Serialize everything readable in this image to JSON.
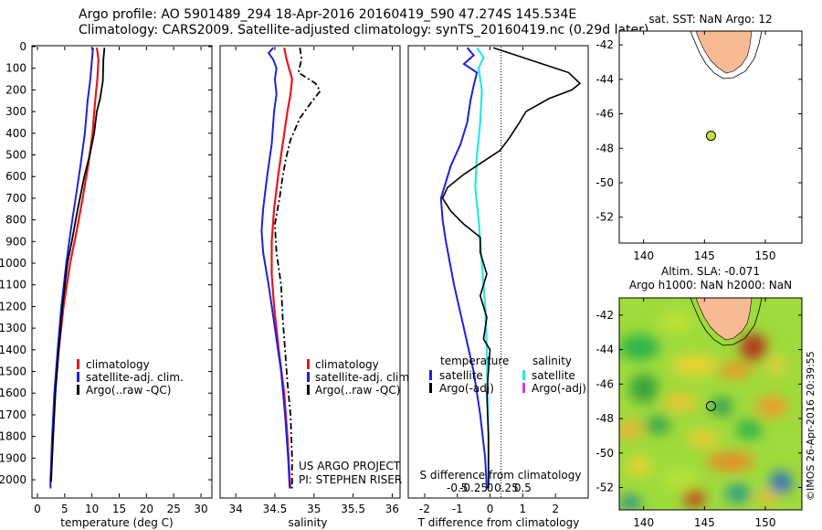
{
  "header": {
    "line1": "Argo profile: AO 5901489_294 18-Apr-2016 20160419_590 47.274S 145.534E",
    "line2": "Climatology: CARS2009. Satellite-adjusted climatology: synTS_20160419.nc (0.29d later)"
  },
  "colors": {
    "climatology": "#e8161c",
    "satellite": "#1c22d8",
    "argo": "#000000",
    "sal_satellite": "#29e6ea",
    "sal_argo": "#d63ad6",
    "land": "#f8ba93"
  },
  "chart_data": [
    {
      "type": "line",
      "id": "temperature_profile",
      "xlabel": "temperature (deg C)",
      "ylabel": "",
      "xlim": [
        -1,
        32
      ],
      "ylim": [
        2080,
        0
      ],
      "xticks": [
        "0",
        "5",
        "10",
        "15",
        "20",
        "25",
        "30"
      ],
      "yticks": [
        "0",
        "100",
        "200",
        "300",
        "400",
        "500",
        "600",
        "700",
        "800",
        "900",
        "1000",
        "1100",
        "1200",
        "1300",
        "1400",
        "1500",
        "1600",
        "1700",
        "1800",
        "1900",
        "2000"
      ],
      "legend": [
        "climatology",
        "satellite-adj. clim.",
        "Argo(..raw -QC)"
      ],
      "series": [
        {
          "name": "climatology",
          "points": [
            [
              10.9,
              5
            ],
            [
              11.2,
              60
            ],
            [
              11.0,
              150
            ],
            [
              10.6,
              250
            ],
            [
              10.1,
              400
            ],
            [
              9.3,
              550
            ],
            [
              8.3,
              700
            ],
            [
              7.2,
              850
            ],
            [
              6.0,
              1000
            ],
            [
              4.8,
              1200
            ],
            [
              3.9,
              1400
            ],
            [
              3.2,
              1600
            ],
            [
              2.8,
              1800
            ],
            [
              2.5,
              2000
            ]
          ]
        },
        {
          "name": "satellite-adj. clim.",
          "points": [
            [
              10.2,
              5
            ],
            [
              10.0,
              60
            ],
            [
              9.7,
              150
            ],
            [
              9.2,
              250
            ],
            [
              8.7,
              400
            ],
            [
              7.9,
              550
            ],
            [
              7.0,
              700
            ],
            [
              6.1,
              850
            ],
            [
              5.3,
              1000
            ],
            [
              4.4,
              1200
            ],
            [
              3.7,
              1400
            ],
            [
              3.1,
              1600
            ],
            [
              2.7,
              1800
            ],
            [
              2.4,
              2000
            ],
            [
              2.4,
              2040
            ]
          ]
        },
        {
          "name": "Argo(..raw -QC)",
          "points": [
            [
              12.3,
              5
            ],
            [
              12.1,
              60
            ],
            [
              12.0,
              160
            ],
            [
              11.5,
              240
            ],
            [
              10.9,
              300
            ],
            [
              10.4,
              400
            ],
            [
              9.6,
              500
            ],
            [
              8.6,
              600
            ],
            [
              7.4,
              750
            ],
            [
              6.3,
              900
            ],
            [
              5.5,
              1000
            ],
            [
              4.6,
              1200
            ],
            [
              3.9,
              1400
            ],
            [
              3.3,
              1600
            ],
            [
              2.9,
              1800
            ],
            [
              2.6,
              1950
            ],
            [
              2.5,
              2010
            ]
          ]
        }
      ]
    },
    {
      "type": "line",
      "id": "salinity_profile",
      "xlabel": "salinity",
      "xlim": [
        33.8,
        36.1
      ],
      "ylim": [
        2080,
        0
      ],
      "xticks": [
        "34",
        "34.5",
        "35",
        "35.5",
        "36"
      ],
      "legend": [
        "climatology",
        "satellite-adj. clim.",
        "Argo(..raw -QC)"
      ],
      "annotation": [
        "US ARGO PROJECT",
        "PI: STEPHEN RISER"
      ],
      "series": [
        {
          "name": "climatology",
          "points": [
            [
              34.62,
              5
            ],
            [
              34.65,
              60
            ],
            [
              34.72,
              150
            ],
            [
              34.7,
              220
            ],
            [
              34.66,
              300
            ],
            [
              34.6,
              450
            ],
            [
              34.54,
              600
            ],
            [
              34.49,
              750
            ],
            [
              34.46,
              900
            ],
            [
              34.46,
              1050
            ],
            [
              34.49,
              1200
            ],
            [
              34.55,
              1400
            ],
            [
              34.62,
              1600
            ],
            [
              34.66,
              1800
            ],
            [
              34.69,
              2000
            ],
            [
              34.7,
              2040
            ]
          ]
        },
        {
          "name": "satellite-adj. clim.",
          "points": [
            [
              34.48,
              5
            ],
            [
              34.42,
              30
            ],
            [
              34.48,
              60
            ],
            [
              34.52,
              100
            ],
            [
              34.5,
              150
            ],
            [
              34.52,
              220
            ],
            [
              34.49,
              300
            ],
            [
              34.46,
              450
            ],
            [
              34.4,
              600
            ],
            [
              34.35,
              750
            ],
            [
              34.33,
              850
            ],
            [
              34.35,
              950
            ],
            [
              34.42,
              1100
            ],
            [
              34.5,
              1300
            ],
            [
              34.58,
              1500
            ],
            [
              34.63,
              1700
            ],
            [
              34.67,
              1900
            ],
            [
              34.69,
              2040
            ]
          ]
        },
        {
          "name": "Argo(..raw -QC)",
          "points": [
            [
              34.82,
              5
            ],
            [
              34.84,
              60
            ],
            [
              34.8,
              120
            ],
            [
              35.02,
              170
            ],
            [
              35.08,
              205
            ],
            [
              34.96,
              260
            ],
            [
              34.82,
              330
            ],
            [
              34.7,
              430
            ],
            [
              34.64,
              520
            ],
            [
              34.6,
              600
            ],
            [
              34.56,
              700
            ],
            [
              34.5,
              820
            ],
            [
              34.52,
              950
            ],
            [
              34.58,
              1100
            ],
            [
              34.6,
              1250
            ],
            [
              34.63,
              1400
            ],
            [
              34.66,
              1550
            ],
            [
              34.7,
              1700
            ],
            [
              34.72,
              1900
            ],
            [
              34.72,
              2040
            ]
          ]
        }
      ]
    },
    {
      "type": "line",
      "id": "difference_profile",
      "xlabel": "T difference from climatology",
      "top_axis_label": "S difference from climatology",
      "xlim": [
        -2.5,
        3.0
      ],
      "ylim": [
        2080,
        0
      ],
      "xticks": [
        "-2",
        "-1",
        "0",
        "1",
        "2"
      ],
      "top_ticks": [
        "-0.5",
        "-0.25",
        "0",
        "0.25",
        "0.5"
      ],
      "legend_titles": [
        "temperature",
        "salinity"
      ],
      "legend": [
        "satellite",
        "Argo(-adj)",
        "satellite",
        "Argo(-adj)"
      ],
      "series": [
        {
          "name": "temperature satellite",
          "points": [
            [
              -0.7,
              5
            ],
            [
              -0.5,
              40
            ],
            [
              -0.8,
              80
            ],
            [
              -0.4,
              120
            ],
            [
              -0.5,
              180
            ],
            [
              -0.6,
              250
            ],
            [
              -0.7,
              350
            ],
            [
              -0.9,
              450
            ],
            [
              -1.2,
              550
            ],
            [
              -1.4,
              650
            ],
            [
              -1.5,
              700
            ],
            [
              -1.45,
              800
            ],
            [
              -1.35,
              900
            ],
            [
              -1.1,
              1100
            ],
            [
              -0.8,
              1300
            ],
            [
              -0.5,
              1500
            ],
            [
              -0.3,
              1700
            ],
            [
              -0.15,
              1900
            ],
            [
              -0.1,
              2040
            ]
          ]
        },
        {
          "name": "salinity satellite",
          "points": [
            [
              -0.4,
              5
            ],
            [
              -0.2,
              50
            ],
            [
              -0.35,
              100
            ],
            [
              -0.25,
              200
            ],
            [
              -0.3,
              350
            ],
            [
              -0.4,
              500
            ],
            [
              -0.45,
              650
            ],
            [
              -0.35,
              800
            ],
            [
              -0.25,
              1000
            ],
            [
              -0.15,
              1200
            ],
            [
              -0.1,
              1400
            ],
            [
              -0.08,
              1600
            ],
            [
              -0.05,
              1800
            ],
            [
              -0.05,
              2040
            ]
          ]
        },
        {
          "name": "temperature Argo(-adj)",
          "points": [
            [
              0.1,
              5
            ],
            [
              0.8,
              40
            ],
            [
              1.6,
              80
            ],
            [
              2.4,
              120
            ],
            [
              2.75,
              170
            ],
            [
              2.5,
              200
            ],
            [
              1.8,
              240
            ],
            [
              1.1,
              300
            ],
            [
              0.9,
              350
            ],
            [
              0.6,
              420
            ],
            [
              0.3,
              480
            ],
            [
              -0.2,
              530
            ],
            [
              -0.8,
              590
            ],
            [
              -1.3,
              650
            ],
            [
              -1.45,
              700
            ],
            [
              -1.2,
              760
            ],
            [
              -0.8,
              820
            ],
            [
              -0.3,
              880
            ],
            [
              -0.3,
              950
            ],
            [
              -0.1,
              1050
            ],
            [
              -0.3,
              1150
            ],
            [
              -0.1,
              1250
            ],
            [
              -0.2,
              1350
            ],
            [
              0.0,
              1400
            ],
            [
              -0.1,
              1600
            ],
            [
              -0.05,
              1800
            ],
            [
              -0.05,
              2040
            ]
          ]
        }
      ]
    },
    {
      "type": "scatter",
      "id": "sst_map",
      "title": "sat. SST: NaN Argo: 12",
      "xlim": [
        138,
        153
      ],
      "ylim": [
        -53.5,
        -41.2
      ],
      "xticks": [
        "140",
        "145",
        "150"
      ],
      "yticks": [
        "-42",
        "-44",
        "-46",
        "-48",
        "-50",
        "-52"
      ],
      "points": [
        {
          "lon": 145.534,
          "lat": -47.274
        }
      ]
    },
    {
      "type": "heatmap",
      "id": "sla_map",
      "title_lines": [
        "Altim. SLA: -0.071",
        "Argo h1000: NaN h2000: NaN"
      ],
      "xlim": [
        138,
        153
      ],
      "ylim": [
        -53.3,
        -41.0
      ],
      "xticks": [
        "140",
        "145",
        "150"
      ],
      "yticks": [
        "-42",
        "-44",
        "-46",
        "-48",
        "-50",
        "-52"
      ],
      "points": [
        {
          "lon": 145.534,
          "lat": -47.274
        }
      ],
      "side_label": "©IMOS 26-Apr-2016 20:39:55"
    }
  ]
}
